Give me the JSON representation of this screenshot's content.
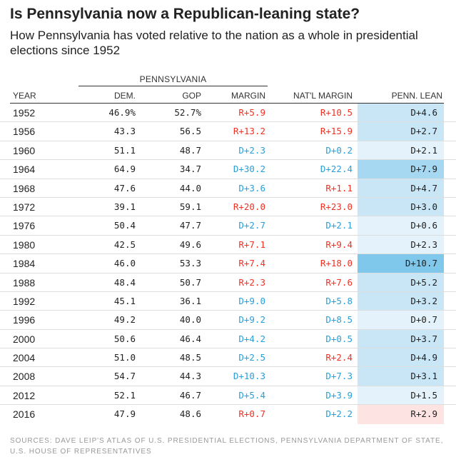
{
  "title": "Is Pennsylvania now a Republican-leaning state?",
  "subtitle": "How Pennsylvania has voted relative to the nation as a whole in presidential elections since 1952",
  "group_label": "PENNSYLVANIA",
  "columns": {
    "year": "YEAR",
    "dem": "DEM.",
    "gop": "GOP",
    "margin": "MARGIN",
    "nat_margin": "NAT'L MARGIN",
    "lean": "PENN. LEAN"
  },
  "colors": {
    "dem_text": "#2a9fd8",
    "rep_text": "#ee3124",
    "lean_dem_light": "#e3f2fb",
    "lean_dem_mid": "#c8e6f6",
    "lean_dem_strong": "#a6d8f1",
    "lean_dem_max": "#7fc8ec",
    "lean_rep": "#fde3e1"
  },
  "rows": [
    {
      "year": "1952",
      "dem": "46.9%",
      "gop": "52.7%",
      "margin": "R+5.9",
      "nat_margin": "R+10.5",
      "lean": "D+4.6"
    },
    {
      "year": "1956",
      "dem": "43.3",
      "gop": "56.5",
      "margin": "R+13.2",
      "nat_margin": "R+15.9",
      "lean": "D+2.7"
    },
    {
      "year": "1960",
      "dem": "51.1",
      "gop": "48.7",
      "margin": "D+2.3",
      "nat_margin": "D+0.2",
      "lean": "D+2.1"
    },
    {
      "year": "1964",
      "dem": "64.9",
      "gop": "34.7",
      "margin": "D+30.2",
      "nat_margin": "D+22.4",
      "lean": "D+7.9"
    },
    {
      "year": "1968",
      "dem": "47.6",
      "gop": "44.0",
      "margin": "D+3.6",
      "nat_margin": "R+1.1",
      "lean": "D+4.7"
    },
    {
      "year": "1972",
      "dem": "39.1",
      "gop": "59.1",
      "margin": "R+20.0",
      "nat_margin": "R+23.0",
      "lean": "D+3.0"
    },
    {
      "year": "1976",
      "dem": "50.4",
      "gop": "47.7",
      "margin": "D+2.7",
      "nat_margin": "D+2.1",
      "lean": "D+0.6"
    },
    {
      "year": "1980",
      "dem": "42.5",
      "gop": "49.6",
      "margin": "R+7.1",
      "nat_margin": "R+9.4",
      "lean": "D+2.3"
    },
    {
      "year": "1984",
      "dem": "46.0",
      "gop": "53.3",
      "margin": "R+7.4",
      "nat_margin": "R+18.0",
      "lean": "D+10.7"
    },
    {
      "year": "1988",
      "dem": "48.4",
      "gop": "50.7",
      "margin": "R+2.3",
      "nat_margin": "R+7.6",
      "lean": "D+5.2"
    },
    {
      "year": "1992",
      "dem": "45.1",
      "gop": "36.1",
      "margin": "D+9.0",
      "nat_margin": "D+5.8",
      "lean": "D+3.2"
    },
    {
      "year": "1996",
      "dem": "49.2",
      "gop": "40.0",
      "margin": "D+9.2",
      "nat_margin": "D+8.5",
      "lean": "D+0.7"
    },
    {
      "year": "2000",
      "dem": "50.6",
      "gop": "46.4",
      "margin": "D+4.2",
      "nat_margin": "D+0.5",
      "lean": "D+3.7"
    },
    {
      "year": "2004",
      "dem": "51.0",
      "gop": "48.5",
      "margin": "D+2.5",
      "nat_margin": "R+2.4",
      "lean": "D+4.9"
    },
    {
      "year": "2008",
      "dem": "54.7",
      "gop": "44.3",
      "margin": "D+10.3",
      "nat_margin": "D+7.3",
      "lean": "D+3.1"
    },
    {
      "year": "2012",
      "dem": "52.1",
      "gop": "46.7",
      "margin": "D+5.4",
      "nat_margin": "D+3.9",
      "lean": "D+1.5"
    },
    {
      "year": "2016",
      "dem": "47.9",
      "gop": "48.6",
      "margin": "R+0.7",
      "nat_margin": "D+2.2",
      "lean": "R+2.9"
    }
  ],
  "sources": "SOURCES: DAVE LEIP'S ATLAS OF U.S. PRESIDENTIAL ELECTIONS, PENNSYLVANIA DEPARTMENT OF STATE, U.S. HOUSE OF REPRESENTATIVES"
}
